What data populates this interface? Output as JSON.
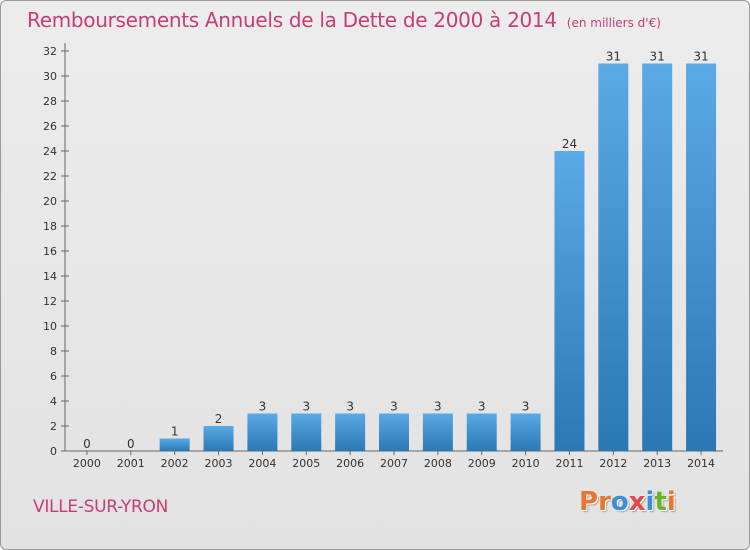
{
  "header": {
    "title": "Remboursements Annuels de la Dette de 2000 à 2014",
    "unit": "(en milliers d'€)"
  },
  "footer": {
    "commune": "VILLE-SUR-YRON",
    "logo": "Proxiti"
  },
  "colors": {
    "title": "#c83c78",
    "bar_light": "#5aaae6",
    "bar_dark": "#2a78b4",
    "logo_letters": [
      "#e8772e",
      "#e8772e",
      "#3a8fd8",
      "#e84848",
      "#3a8fd8",
      "#6ab42a",
      "#e8772e"
    ]
  },
  "chart_data": {
    "type": "bar",
    "categories": [
      "2000",
      "2001",
      "2002",
      "2003",
      "2004",
      "2005",
      "2006",
      "2007",
      "2008",
      "2009",
      "2010",
      "2011",
      "2012",
      "2013",
      "2014"
    ],
    "values": [
      0,
      0,
      1,
      2,
      3,
      3,
      3,
      3,
      3,
      3,
      3,
      24,
      31,
      31,
      31
    ],
    "ylim": [
      0,
      32
    ],
    "yticks": [
      0,
      2,
      4,
      6,
      8,
      10,
      12,
      14,
      16,
      18,
      20,
      22,
      24,
      26,
      28,
      30,
      32
    ],
    "grid": false,
    "data_labels": true
  }
}
